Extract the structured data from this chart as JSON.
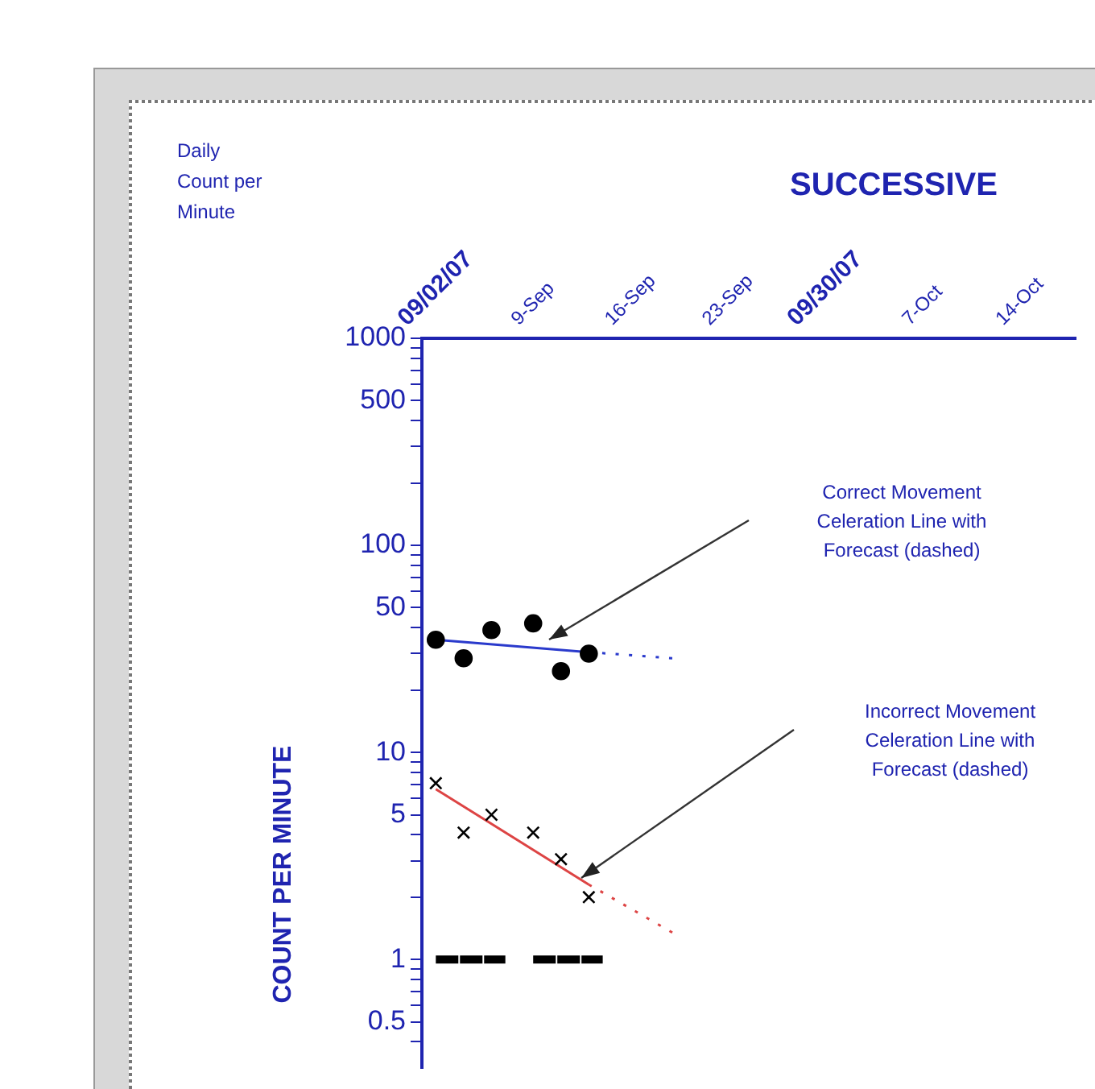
{
  "chart_data": {
    "type": "scatter",
    "title": "SUCCESSIVE",
    "ylabel": "COUNT PER MINUTE",
    "log": "y",
    "grid": false,
    "legend": false,
    "xlim": [
      "--09-01",
      "--10-18"
    ],
    "xticks": [
      {
        "value": "--09-02",
        "label": "09/02/07"
      },
      {
        "value": "--09-09",
        "label": "9-Sep"
      },
      {
        "value": "--09-16",
        "label": "16-Sep"
      },
      {
        "value": "--09-23",
        "label": "23-Sep"
      },
      {
        "value": "--09-30",
        "label": "09/30/07"
      },
      {
        "value": "--10-07",
        "label": "7-Oct"
      },
      {
        "value": "--10-14",
        "label": "14-Oct"
      }
    ],
    "ylim": [
      0.3,
      1000
    ],
    "yticks": [
      1000,
      {
        "value": 900,
        "label": null
      },
      {
        "value": 800,
        "label": null
      },
      {
        "value": 700,
        "label": null
      },
      {
        "value": 600,
        "label": null
      },
      500,
      {
        "value": 400,
        "label": null
      },
      {
        "value": 300,
        "label": null
      },
      {
        "value": 200,
        "label": null
      },
      100,
      {
        "value": 90,
        "label": null
      },
      {
        "value": 80,
        "label": null
      },
      {
        "value": 70,
        "label": null
      },
      {
        "value": 60,
        "label": null
      },
      50,
      {
        "value": 40,
        "label": null
      },
      {
        "value": 30,
        "label": null
      },
      {
        "value": 20,
        "label": null
      },
      10,
      {
        "value": 9,
        "label": null
      },
      {
        "value": 8,
        "label": null
      },
      {
        "value": 7,
        "label": null
      },
      {
        "value": 6,
        "label": null
      },
      5,
      {
        "value": 4,
        "label": null
      },
      {
        "value": 3,
        "label": null
      },
      {
        "value": 2,
        "label": null
      },
      1,
      {
        "value": 0.9,
        "label": null
      },
      {
        "value": 0.8,
        "label": null
      },
      {
        "value": 0.7,
        "label": null
      },
      {
        "value": 0.6,
        "label": null
      },
      0.5,
      {
        "value": 0.4,
        "label": null
      }
    ],
    "series": [
      {
        "type": "scatter",
        "marker": "circle",
        "color": "#000000",
        "x": [
          "--09-02",
          "--09-04",
          "--09-06",
          "--09-09",
          "--09-11",
          "--09-13"
        ],
        "values": [
          35,
          28.5,
          39,
          42,
          24.7,
          30
        ]
      },
      {
        "type": "scatter",
        "marker": "cross",
        "color": "#000000",
        "x": [
          "--09-02",
          "--09-04",
          "--09-06",
          "--09-09",
          "--09-11",
          "--09-13"
        ],
        "values": [
          7.1,
          4.1,
          5,
          4.1,
          3.05,
          2
        ]
      },
      {
        "type": "line",
        "marker": "none",
        "line_style": "solid",
        "color": "#2a3acc",
        "x": [
          "--09-02",
          "--09-13"
        ],
        "values": [
          35,
          30.5
        ]
      },
      {
        "type": "line",
        "marker": "none",
        "line_style": "dotted",
        "color": "#2a3acc",
        "x": [
          "--09-13",
          "--09-19"
        ],
        "values": [
          30.5,
          28.5
        ]
      },
      {
        "type": "line",
        "marker": "none",
        "line_style": "solid",
        "color": "#dd4444",
        "x": [
          "--09-02",
          "--09-13"
        ],
        "values": [
          6.65,
          2.3
        ]
      },
      {
        "type": "line",
        "marker": "none",
        "line_style": "dotted",
        "color": "#dd4444",
        "x": [
          "--09-13",
          "--09-19"
        ],
        "values": [
          2.3,
          1.35
        ]
      },
      {
        "type": "line",
        "marker": "none",
        "line_style": "dashed",
        "color": "#000000",
        "x": [
          "--09-02",
          "--09-03",
          "--09-04",
          "--09-05",
          "--09-06",
          "--09-07",
          "--09-08",
          "--09-09",
          "--09-10",
          "--09-11",
          "--09-12",
          "--09-13",
          "--09-14"
        ],
        "values": [
          1,
          1,
          1,
          1,
          1,
          1,
          null,
          1,
          1,
          1,
          1,
          1,
          1
        ]
      }
    ],
    "annotations": [
      "Daily Count per Minute",
      "Correct Movement Celeration Line with Forecast (dashed)",
      "Incorrect Movement Celeration Line with Forecast (dashed)"
    ]
  }
}
